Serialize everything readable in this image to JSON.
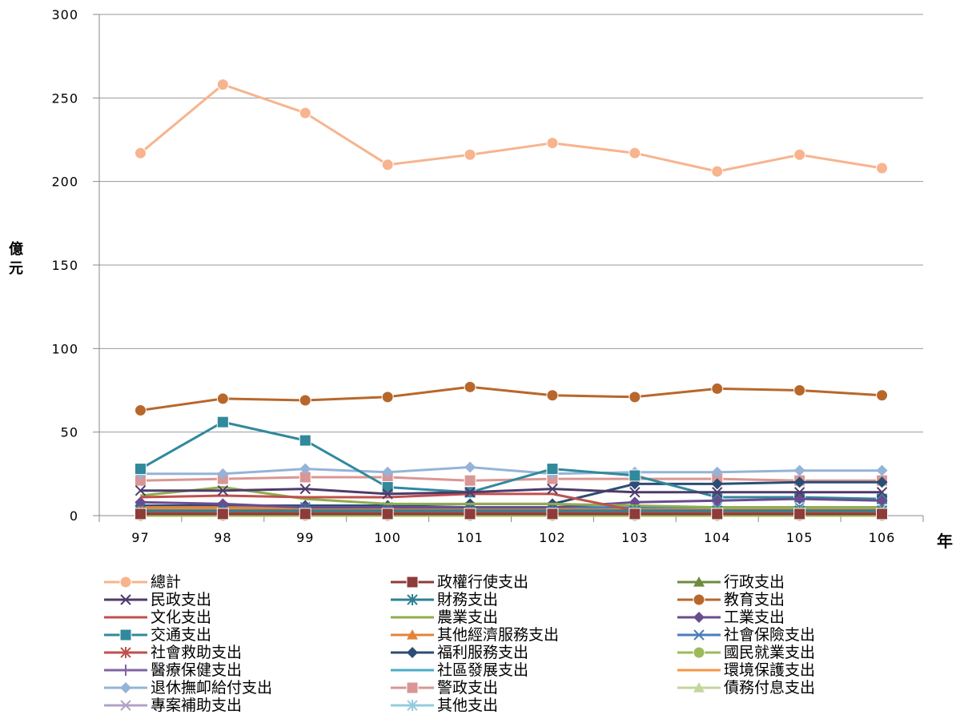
{
  "chart_data": {
    "type": "line",
    "title": "",
    "xlabel": "年",
    "ylabel": "億元",
    "x": [
      "97",
      "98",
      "99",
      "100",
      "101",
      "102",
      "103",
      "104",
      "105",
      "106"
    ],
    "ylim": [
      0,
      300
    ],
    "yticks": [
      0,
      50,
      100,
      150,
      200,
      250,
      300
    ],
    "grid": true,
    "legend_position": "bottom",
    "series": [
      {
        "name": "總計",
        "color": "#F7B48E",
        "marker": "circle",
        "values": [
          217,
          258,
          241,
          210,
          216,
          223,
          217,
          206,
          216,
          208
        ]
      },
      {
        "name": "政權行使支出",
        "color": "#8E3B39",
        "marker": "square",
        "values": [
          1,
          1,
          1,
          1,
          1,
          1,
          1,
          1,
          1,
          1
        ]
      },
      {
        "name": "行政支出",
        "color": "#6E8B3D",
        "marker": "triangle",
        "values": [
          1,
          1,
          1,
          1,
          1,
          1,
          1,
          1,
          1,
          1
        ]
      },
      {
        "name": "民政支出",
        "color": "#4E3B6B",
        "marker": "x",
        "values": [
          15,
          15,
          16,
          13,
          14,
          16,
          14,
          14,
          14,
          14
        ]
      },
      {
        "name": "財務支出",
        "color": "#2E8193",
        "marker": "star",
        "values": [
          3,
          3,
          3,
          3,
          3,
          3,
          3,
          3,
          3,
          3
        ]
      },
      {
        "name": "教育支出",
        "color": "#B8672B",
        "marker": "circle",
        "values": [
          63,
          70,
          69,
          71,
          77,
          72,
          71,
          76,
          75,
          72
        ]
      },
      {
        "name": "文化支出",
        "color": "#C0504D",
        "marker": "none",
        "values": [
          11,
          12,
          11,
          11,
          13,
          13,
          3,
          3,
          3,
          3
        ]
      },
      {
        "name": "農業支出",
        "color": "#8FAE4B",
        "marker": "none",
        "values": [
          12,
          17,
          10,
          7,
          7,
          7,
          6,
          5,
          5,
          5
        ]
      },
      {
        "name": "工業支出",
        "color": "#6A4C8F",
        "marker": "diamond",
        "values": [
          8,
          7,
          5,
          5,
          5,
          5,
          8,
          9,
          10,
          9
        ]
      },
      {
        "name": "交通支出",
        "color": "#31899C",
        "marker": "square",
        "values": [
          28,
          56,
          45,
          17,
          14,
          28,
          24,
          11,
          11,
          10
        ]
      },
      {
        "name": "其他經濟服務支出",
        "color": "#E3833A",
        "marker": "triangle",
        "values": [
          5,
          5,
          4,
          4,
          4,
          4,
          3,
          3,
          3,
          3
        ]
      },
      {
        "name": "社會保險支出",
        "color": "#4A7EBB",
        "marker": "x",
        "values": [
          5,
          5,
          5,
          5,
          5,
          5,
          5,
          5,
          5,
          5
        ]
      },
      {
        "name": "社會救助支出",
        "color": "#C0504D",
        "marker": "star",
        "values": [
          2,
          2,
          2,
          2,
          2,
          2,
          2,
          2,
          2,
          2
        ]
      },
      {
        "name": "福利服務支出",
        "color": "#2C4D75",
        "marker": "diamond",
        "values": [
          6,
          6,
          6,
          6,
          7,
          7,
          19,
          19,
          20,
          20
        ]
      },
      {
        "name": "國民就業支出",
        "color": "#9BBB59",
        "marker": "circle",
        "values": [
          0,
          0,
          0,
          0,
          0,
          0,
          0,
          0,
          0,
          0
        ]
      },
      {
        "name": "醫療保健支出",
        "color": "#8064A2",
        "marker": "plus",
        "values": [
          1,
          1,
          1,
          1,
          1,
          1,
          1,
          1,
          1,
          1
        ]
      },
      {
        "name": "社區發展支出",
        "color": "#4BACC6",
        "marker": "none",
        "values": [
          2,
          2,
          2,
          2,
          2,
          2,
          2,
          2,
          2,
          2
        ]
      },
      {
        "name": "環境保護支出",
        "color": "#F79646",
        "marker": "none",
        "values": [
          4,
          4,
          4,
          4,
          4,
          4,
          4,
          4,
          4,
          4
        ]
      },
      {
        "name": "退休撫卹給付支出",
        "color": "#95B3D7",
        "marker": "diamond",
        "values": [
          25,
          25,
          28,
          26,
          29,
          25,
          26,
          26,
          27,
          27
        ]
      },
      {
        "name": "警政支出",
        "color": "#D99694",
        "marker": "square",
        "values": [
          21,
          22,
          23,
          23,
          21,
          22,
          22,
          22,
          21,
          21
        ]
      },
      {
        "name": "債務付息支出",
        "color": "#C3D69B",
        "marker": "triangle",
        "values": [
          1,
          1,
          1,
          1,
          1,
          1,
          1,
          1,
          1,
          1
        ]
      },
      {
        "name": "專案補助支出",
        "color": "#B2A2C7",
        "marker": "x",
        "values": [
          1,
          1,
          1,
          1,
          1,
          1,
          1,
          1,
          1,
          1
        ]
      },
      {
        "name": "其他支出",
        "color": "#92CDDC",
        "marker": "star",
        "values": [
          3,
          3,
          3,
          3,
          3,
          3,
          3,
          3,
          3,
          3
        ]
      }
    ]
  }
}
